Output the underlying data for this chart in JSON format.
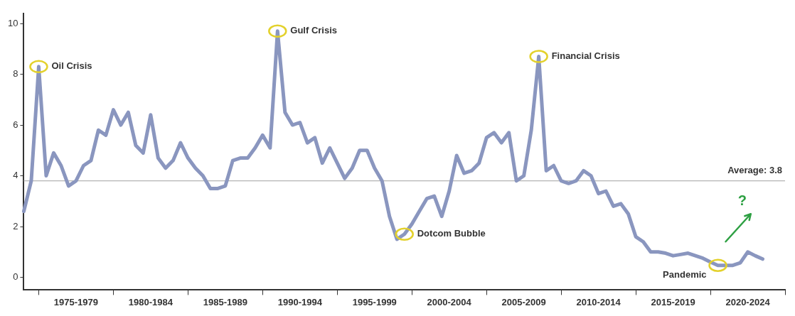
{
  "chart_data": {
    "type": "line",
    "categories": [
      null,
      null,
      null,
      null,
      null,
      null,
      null,
      "1975-1979",
      null,
      null,
      null,
      null,
      null,
      null,
      null,
      null,
      null,
      "1980-1984",
      null,
      null,
      null,
      null,
      null,
      null,
      null,
      null,
      null,
      "1985-1989",
      null,
      null,
      null,
      null,
      null,
      null,
      null,
      null,
      null,
      "1990-1994",
      null,
      null,
      null,
      null,
      null,
      null,
      null,
      null,
      null,
      "1995-1999",
      null,
      null,
      null,
      null,
      null,
      null,
      null,
      null,
      null,
      "2000-2004",
      null,
      null,
      null,
      null,
      null,
      null,
      null,
      null,
      null,
      "2005-2009",
      null,
      null,
      null,
      null,
      null,
      null,
      null,
      null,
      null,
      "2010-2014",
      null,
      null,
      null,
      null,
      null,
      null,
      null,
      null,
      null,
      "2015-2019",
      null,
      null,
      null,
      null,
      null,
      null,
      null,
      null,
      null,
      "2020-2024",
      null,
      null,
      null,
      null,
      null
    ],
    "series": [
      {
        "color": "#8a96bf",
        "values": [
          2.6,
          3.8,
          8.3,
          4.0,
          4.9,
          4.4,
          3.6,
          3.8,
          4.4,
          4.6,
          5.8,
          5.6,
          6.6,
          6.0,
          6.5,
          5.2,
          4.9,
          6.4,
          4.7,
          4.3,
          4.6,
          5.3,
          4.7,
          4.3,
          4.0,
          3.5,
          3.5,
          3.6,
          4.6,
          4.7,
          4.7,
          5.1,
          5.6,
          5.1,
          9.7,
          6.5,
          6.0,
          6.1,
          5.3,
          5.5,
          4.5,
          5.1,
          4.5,
          3.9,
          4.3,
          5.0,
          5.0,
          4.3,
          3.8,
          2.4,
          1.5,
          1.7,
          2.1,
          2.6,
          3.1,
          3.2,
          2.4,
          3.4,
          4.8,
          4.1,
          4.2,
          4.5,
          5.5,
          5.7,
          5.3,
          5.7,
          3.8,
          4.0,
          5.8,
          8.7,
          4.2,
          4.4,
          3.8,
          3.7,
          3.8,
          4.2,
          4.0,
          3.3,
          3.4,
          2.8,
          2.9,
          2.5,
          1.6,
          1.4,
          1.0,
          1.0,
          0.95,
          0.85,
          0.9,
          0.95,
          0.85,
          0.75,
          0.6,
          0.47,
          0.47,
          0.47,
          0.57,
          1.0,
          0.85,
          0.72,
          null,
          null,
          null
        ]
      }
    ],
    "ylim": [
      -0.5,
      10.4
    ],
    "yticks": [
      0,
      2,
      4,
      6,
      8,
      10
    ],
    "grid": false,
    "legend": false,
    "ref_lines": [
      {
        "axis": "y",
        "value": 3.8,
        "label": "Average: 3.8",
        "color": "#b4b4b4"
      }
    ],
    "annotations": [
      "Oil Crisis",
      "Gulf Crisis",
      "Dotcom Bubble",
      "Financial Crisis",
      "Pandemic",
      "?"
    ]
  }
}
